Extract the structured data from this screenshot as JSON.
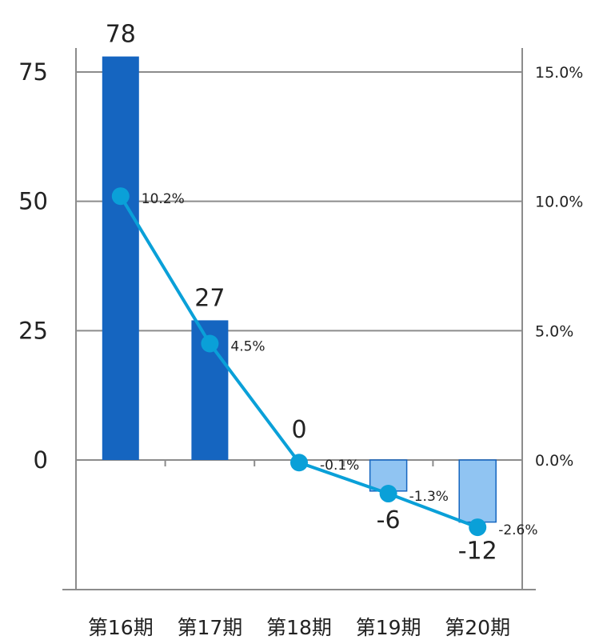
{
  "chart_data": {
    "type": "bar",
    "categories": [
      "第16期",
      "第17期",
      "第18期",
      "第19期",
      "第20期"
    ],
    "series": [
      {
        "type": "bar",
        "axis": "left",
        "values": [
          78,
          27,
          0,
          -6,
          -12
        ],
        "labels": [
          "78",
          "27",
          "0",
          "-6",
          "-12"
        ],
        "color_positive": "#1565C0",
        "color_negative": "#90C4F2",
        "color_negative_border": "#1565C0"
      },
      {
        "type": "line",
        "axis": "right",
        "values": [
          10.2,
          4.5,
          -0.1,
          -1.3,
          -2.6
        ],
        "labels": [
          "10.2%",
          "4.5%",
          "-0.1%",
          "-1.3%",
          "-2.6%"
        ],
        "color": "#0AA0D8"
      }
    ],
    "y_left": {
      "min": -25,
      "max": 75,
      "ticks": [
        0,
        25,
        50,
        75
      ],
      "tick_labels": [
        "0",
        "25",
        "50",
        "75"
      ]
    },
    "y_right": {
      "min": -5,
      "max": 15,
      "ticks": [
        0,
        5,
        10,
        15
      ],
      "tick_labels": [
        "0.0%",
        "5.0%",
        "10.0%",
        "15.0%"
      ]
    },
    "grid": true,
    "grid_color": "#8c8c8c",
    "axis_color": "#8c8c8c"
  }
}
